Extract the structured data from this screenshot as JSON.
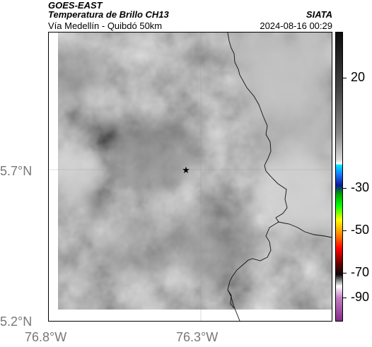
{
  "header": {
    "satellite": "GOES-EAST",
    "product": "Temperatura de Brillo CH13",
    "location": "Vía Medellín - Quibdó 50km",
    "agency": "SIATA",
    "datetime": "2024-08-16 00:29"
  },
  "map": {
    "lat_ticks": [
      "5.7°N",
      "5.2°N"
    ],
    "lon_ticks": [
      "76.8°W",
      "76.3°W"
    ],
    "marker": "star-marker"
  },
  "colorbar": {
    "labels": [
      "20",
      "-30",
      "-50",
      "-70",
      "-90"
    ]
  },
  "colors": {
    "frame": "#000000",
    "tick_label": "#777777",
    "gridline": "#999999"
  }
}
